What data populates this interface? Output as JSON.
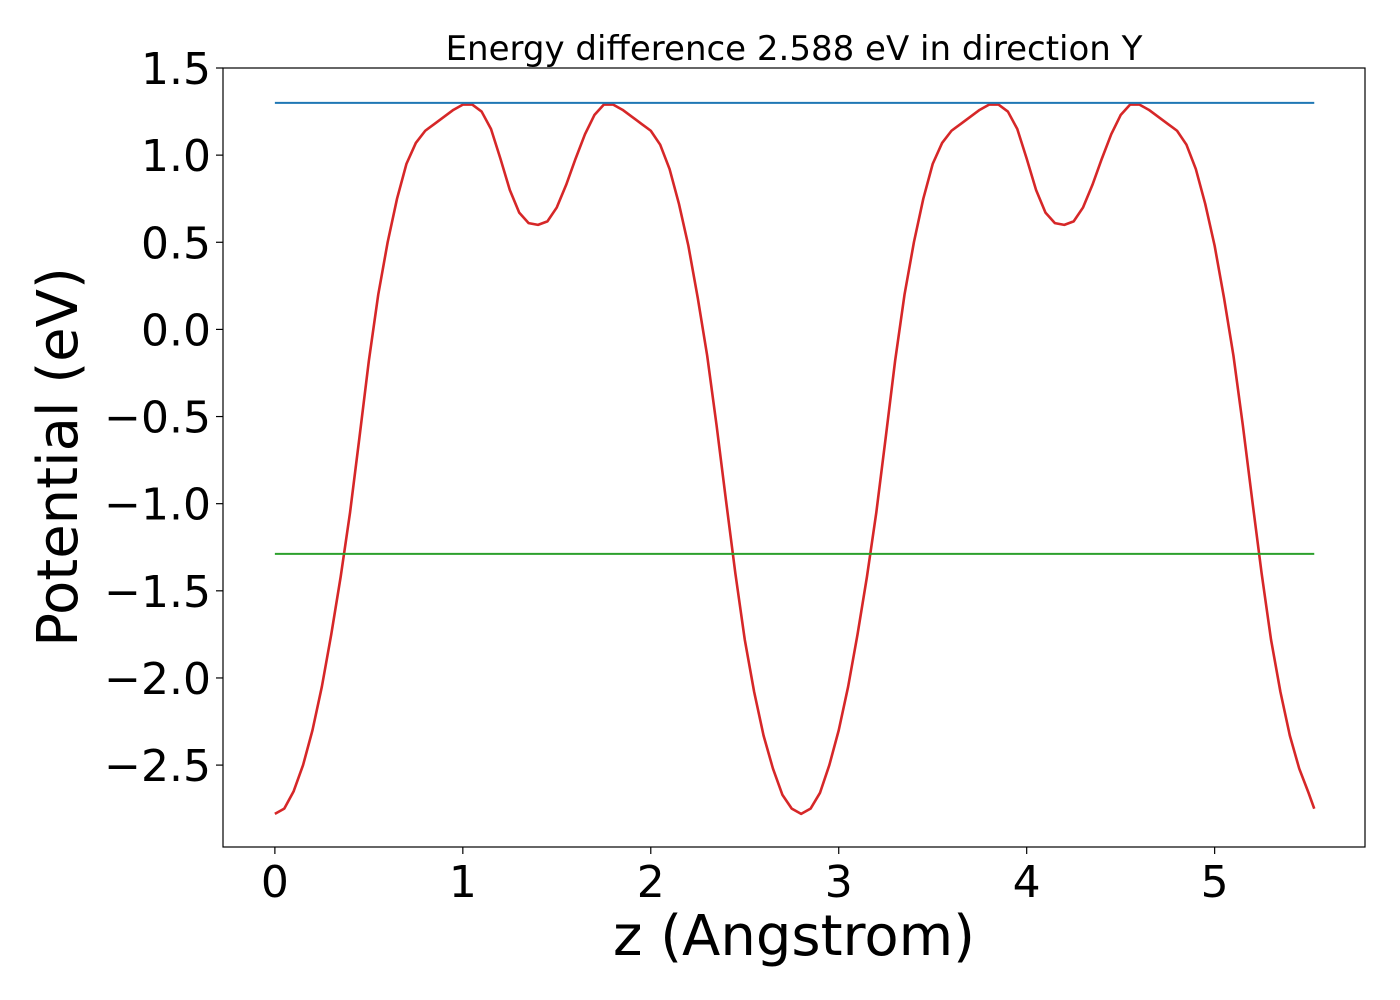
{
  "chart_data": {
    "type": "line",
    "title": "Energy difference 2.588 eV in direction Y",
    "xlabel": "z (Angstrom)",
    "ylabel": "Potential (eV)",
    "xlim": [
      -0.276,
      5.8
    ],
    "ylim": [
      -2.97,
      1.5
    ],
    "xticks": [
      0,
      1,
      2,
      3,
      4,
      5
    ],
    "xtick_labels": [
      "0",
      "1",
      "2",
      "3",
      "4",
      "5"
    ],
    "yticks": [
      -2.5,
      -2.0,
      -1.5,
      -1.0,
      -0.5,
      0.0,
      0.5,
      1.0,
      1.5
    ],
    "ytick_labels": [
      "−2.5",
      "−2.0",
      "−1.5",
      "−1.0",
      "−0.5",
      "0.0",
      "0.5",
      "1.0",
      "1.5"
    ],
    "grid": false,
    "series": [
      {
        "color": "#d62728",
        "x": [
          0.0,
          0.05,
          0.1,
          0.15,
          0.2,
          0.25,
          0.3,
          0.35,
          0.4,
          0.45,
          0.5,
          0.55,
          0.6,
          0.65,
          0.7,
          0.75,
          0.8,
          0.85,
          0.9,
          0.95,
          1.0,
          1.05,
          1.1,
          1.15,
          1.2,
          1.25,
          1.3,
          1.35,
          1.4,
          1.45,
          1.5,
          1.55,
          1.6,
          1.65,
          1.7,
          1.75,
          1.8,
          1.85,
          1.9,
          1.95,
          2.0,
          2.05,
          2.1,
          2.15,
          2.2,
          2.25,
          2.3,
          2.35,
          2.4,
          2.45,
          2.5,
          2.55,
          2.6,
          2.65,
          2.7,
          2.75,
          2.8,
          2.85,
          2.9,
          2.95,
          3.0,
          3.05,
          3.1,
          3.15,
          3.2,
          3.25,
          3.3,
          3.35,
          3.4,
          3.45,
          3.5,
          3.55,
          3.6,
          3.65,
          3.7,
          3.75,
          3.8,
          3.85,
          3.9,
          3.95,
          4.0,
          4.05,
          4.1,
          4.15,
          4.2,
          4.25,
          4.3,
          4.35,
          4.4,
          4.45,
          4.5,
          4.55,
          4.6,
          4.65,
          4.7,
          4.75,
          4.8,
          4.85,
          4.9,
          4.95,
          5.0,
          5.05,
          5.1,
          5.15,
          5.2,
          5.25,
          5.3,
          5.35,
          5.4,
          5.45,
          5.5,
          5.53
        ],
        "y": [
          -2.78,
          -2.75,
          -2.65,
          -2.5,
          -2.3,
          -2.05,
          -1.75,
          -1.42,
          -1.05,
          -0.62,
          -0.18,
          0.2,
          0.5,
          0.75,
          0.95,
          1.07,
          1.14,
          1.18,
          1.22,
          1.26,
          1.29,
          1.29,
          1.25,
          1.15,
          0.98,
          0.8,
          0.67,
          0.61,
          0.6,
          0.62,
          0.7,
          0.83,
          0.98,
          1.12,
          1.23,
          1.29,
          1.29,
          1.26,
          1.22,
          1.18,
          1.14,
          1.06,
          0.92,
          0.72,
          0.48,
          0.18,
          -0.15,
          -0.55,
          -0.98,
          -1.4,
          -1.78,
          -2.08,
          -2.33,
          -2.52,
          -2.67,
          -2.75,
          -2.78,
          -2.75,
          -2.66,
          -2.5,
          -2.3,
          -2.05,
          -1.75,
          -1.42,
          -1.05,
          -0.62,
          -0.18,
          0.2,
          0.5,
          0.75,
          0.95,
          1.07,
          1.14,
          1.18,
          1.22,
          1.26,
          1.29,
          1.29,
          1.25,
          1.15,
          0.98,
          0.8,
          0.67,
          0.61,
          0.6,
          0.62,
          0.7,
          0.83,
          0.98,
          1.12,
          1.23,
          1.29,
          1.29,
          1.26,
          1.22,
          1.18,
          1.14,
          1.06,
          0.92,
          0.72,
          0.48,
          0.18,
          -0.15,
          -0.55,
          -0.98,
          -1.4,
          -1.78,
          -2.08,
          -2.33,
          -2.52,
          -2.66,
          -2.75
        ]
      },
      {
        "color": "#1f77b4",
        "x": [
          0.0,
          5.53
        ],
        "y": [
          1.3,
          1.3
        ]
      },
      {
        "color": "#2ca02c",
        "x": [
          0.0,
          5.53
        ],
        "y": [
          -1.288,
          -1.288
        ]
      }
    ]
  }
}
